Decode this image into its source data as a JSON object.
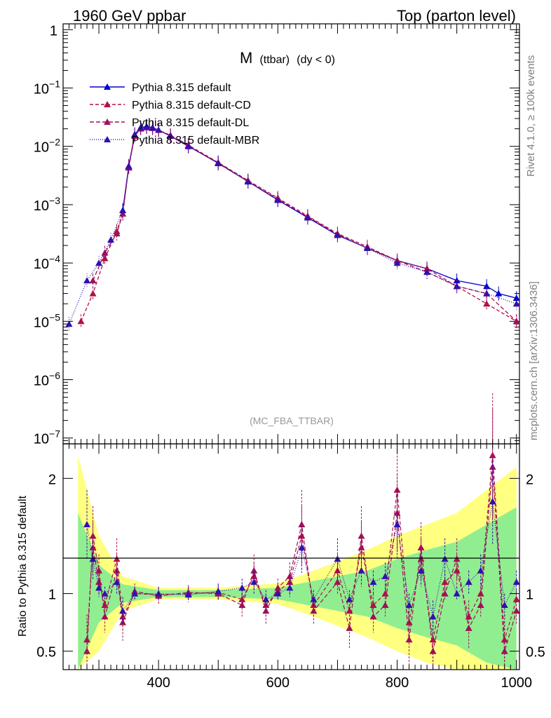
{
  "header": {
    "left": "1960 GeV ppbar",
    "right": "Top (parton level)"
  },
  "side": {
    "rivet": "Rivet 4.1.0, ≥ 100k events",
    "mcplots": "mcplots.cern.ch [arXiv:1306.3436]"
  },
  "chart_data": {
    "type": "line",
    "title_main": "M",
    "title_sub": "(ttbar)",
    "title_tail": "(dy < 0)",
    "watermark": "(MC_FBA_TTBAR)",
    "ratio_ylabel": "Ratio to Pythia 8.315 default",
    "xlim": [
      240,
      1005
    ],
    "ylim_log": [
      -7.1,
      0.1
    ],
    "ratio_ylim": [
      0.34,
      2.3
    ],
    "xticks": [
      400,
      600,
      800,
      1000
    ],
    "yticks_main": [
      {
        "v": 0,
        "mantissa": "1",
        "exp": ""
      },
      {
        "v": -1,
        "mantissa": "10",
        "exp": "−1"
      },
      {
        "v": -2,
        "mantissa": "10",
        "exp": "−2"
      },
      {
        "v": -3,
        "mantissa": "10",
        "exp": "−3"
      },
      {
        "v": -4,
        "mantissa": "10",
        "exp": "−4"
      },
      {
        "v": -5,
        "mantissa": "10",
        "exp": "−5"
      },
      {
        "v": -6,
        "mantissa": "10",
        "exp": "−6"
      },
      {
        "v": -7,
        "mantissa": "10",
        "exp": "−7"
      }
    ],
    "yticks_ratio": [
      {
        "v": 0.5,
        "label": "0.5"
      },
      {
        "v": 1,
        "label": "1"
      },
      {
        "v": 2,
        "label": "2"
      }
    ],
    "series": [
      {
        "name": "Pythia 8.315 default",
        "color": "#0000cc",
        "dash": "",
        "errdash": "",
        "x": [
          340,
          350,
          360,
          370,
          380,
          390,
          400,
          420,
          450,
          500,
          550,
          600,
          650,
          700,
          750,
          800,
          850,
          900,
          950,
          970,
          1000
        ],
        "y": [
          0.0008,
          0.0045,
          0.016,
          0.021,
          0.022,
          0.021,
          0.019,
          0.015,
          0.01,
          0.0052,
          0.0025,
          0.0012,
          0.0006,
          0.0003,
          0.00018,
          0.00011,
          8e-05,
          5e-05,
          4e-05,
          3e-05,
          2.5e-05
        ]
      },
      {
        "name": "Pythia 8.315 default-CD",
        "color": "#b01048",
        "dash": "5,3",
        "errdash": "3,2",
        "x": [
          270,
          290,
          310,
          330,
          340,
          350,
          360,
          370,
          380,
          390,
          400,
          420,
          450,
          500,
          550,
          600,
          650,
          700,
          750,
          800,
          850,
          900,
          950,
          1000
        ],
        "y": [
          1e-05,
          3e-05,
          0.00012,
          0.00035,
          0.0007,
          0.0043,
          0.015,
          0.02,
          0.021,
          0.0205,
          0.019,
          0.0155,
          0.0105,
          0.0053,
          0.0026,
          0.0013,
          0.00064,
          0.00032,
          0.00019,
          0.00011,
          8e-05,
          4e-05,
          2e-05,
          1e-05
        ]
      },
      {
        "name": "Pythia 8.315 default-DL",
        "color": "#a0105a",
        "dash": "6,3",
        "errdash": "4,2",
        "x": [
          290,
          310,
          330,
          340,
          350,
          360,
          370,
          380,
          390,
          400,
          420,
          450,
          500,
          550,
          600,
          650,
          700,
          750,
          800,
          850,
          900,
          950,
          1000
        ],
        "y": [
          5e-05,
          0.00015,
          0.00032,
          0.0007,
          0.0044,
          0.0155,
          0.0205,
          0.0215,
          0.0205,
          0.019,
          0.015,
          0.0102,
          0.0051,
          0.0025,
          0.00125,
          0.00062,
          0.00031,
          0.00018,
          0.00011,
          7e-05,
          4e-05,
          3e-05,
          1e-05
        ]
      },
      {
        "name": "Pythia 8.315 default-MBR",
        "color": "#3010b0",
        "dash": "1,2",
        "errdash": "1,2",
        "x": [
          250,
          280,
          300,
          320,
          340,
          350,
          360,
          370,
          380,
          390,
          400,
          420,
          450,
          500,
          550,
          600,
          650,
          700,
          750,
          800,
          850,
          900,
          950,
          1000
        ],
        "y": [
          9e-06,
          5e-05,
          0.0001,
          0.00025,
          0.0008,
          0.0046,
          0.016,
          0.0208,
          0.0218,
          0.0207,
          0.0192,
          0.0152,
          0.0101,
          0.0051,
          0.00248,
          0.0012,
          0.0006,
          0.0003,
          0.00018,
          0.0001,
          7e-05,
          4e-05,
          3e-05,
          2e-05
        ]
      }
    ],
    "band_x": [
      265,
      300,
      340,
      400,
      500,
      600,
      650,
      700,
      750,
      800,
      850,
      900,
      950,
      1000
    ],
    "band_green": [
      0.7,
      0.25,
      0.08,
      0.03,
      0.03,
      0.05,
      0.1,
      0.15,
      0.2,
      0.3,
      0.38,
      0.45,
      0.6,
      0.75
    ],
    "band_yellow": [
      1.2,
      0.5,
      0.15,
      0.05,
      0.05,
      0.09,
      0.18,
      0.28,
      0.38,
      0.5,
      0.6,
      0.7,
      0.9,
      1.1
    ],
    "ratio_series": [
      {
        "x": [
          280,
          290,
          300,
          310,
          330,
          340,
          360,
          400,
          450,
          500,
          540,
          560,
          580,
          600,
          620,
          640,
          660,
          700,
          720,
          740,
          760,
          780,
          800,
          820,
          840,
          860,
          880,
          900,
          920,
          940,
          960,
          980,
          1000
        ],
        "y": [
          0.6,
          1.4,
          1.1,
          0.9,
          1.3,
          0.8,
          1.0,
          0.99,
          1.0,
          1.01,
          0.95,
          1.15,
          0.9,
          1.02,
          1.1,
          1.5,
          0.9,
          1.2,
          0.85,
          1.4,
          0.9,
          1.0,
          1.9,
          0.75,
          1.3,
          0.6,
          1.1,
          1.2,
          0.8,
          1.0,
          2.2,
          0.6,
          0.95
        ]
      },
      {
        "x": [
          280,
          290,
          300,
          310,
          330,
          340,
          360,
          400,
          450,
          500,
          540,
          560,
          580,
          600,
          620,
          640,
          660,
          700,
          720,
          740,
          760,
          780,
          800,
          820,
          840,
          860,
          880,
          900,
          920,
          940,
          960,
          980,
          1000
        ],
        "y": [
          0.5,
          1.5,
          1.2,
          0.8,
          1.2,
          0.75,
          1.02,
          0.98,
          1.01,
          1.0,
          0.9,
          1.2,
          0.85,
          1.05,
          1.15,
          1.6,
          0.85,
          1.1,
          0.7,
          1.5,
          0.8,
          0.9,
          1.7,
          0.6,
          1.4,
          0.5,
          1.0,
          1.3,
          0.7,
          0.9,
          2.1,
          0.5,
          0.85
        ]
      },
      {
        "x": [
          280,
          290,
          300,
          310,
          330,
          340,
          360,
          400,
          450,
          500,
          540,
          560,
          580,
          600,
          620,
          640,
          660,
          700,
          720,
          740,
          760,
          780,
          800,
          820,
          840,
          860,
          880,
          900,
          920,
          940,
          960,
          980,
          1000
        ],
        "y": [
          1.6,
          1.3,
          1.05,
          1.0,
          1.1,
          0.85,
          1.0,
          1.0,
          0.99,
          1.02,
          1.05,
          1.1,
          0.95,
          1.0,
          1.05,
          1.4,
          0.95,
          1.3,
          0.95,
          1.2,
          1.1,
          1.15,
          1.6,
          0.9,
          1.2,
          0.8,
          1.3,
          1.0,
          1.1,
          1.2,
          1.8,
          0.9,
          1.1
        ]
      }
    ]
  }
}
